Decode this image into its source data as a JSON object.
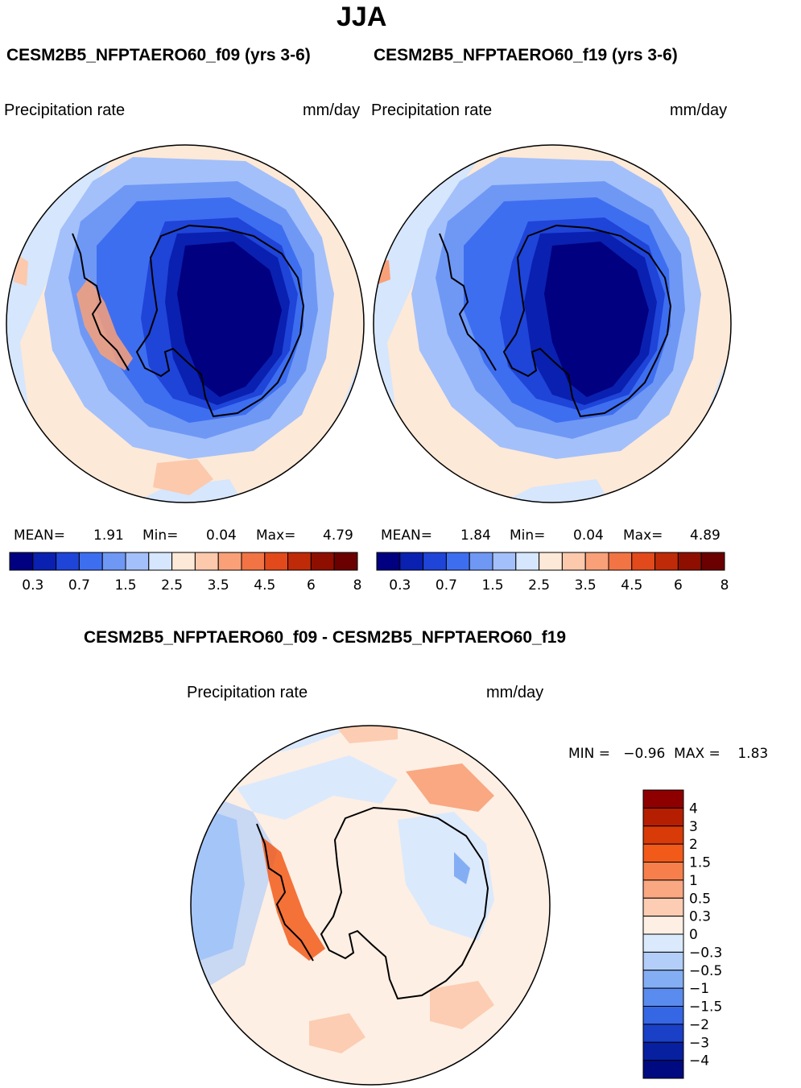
{
  "title": "JJA",
  "panels": [
    {
      "case": "CESM2B5_NFPTAERO60_f09 (yrs 3-6)",
      "variable": "Precipitation rate",
      "units": "mm/day",
      "mean_label": "MEAN=",
      "mean": "1.91",
      "min_label": "Min=",
      "min": "0.04",
      "max_label": "Max=",
      "max": "4.79"
    },
    {
      "case": "CESM2B5_NFPTAERO60_f19 (yrs 3-6)",
      "variable": "Precipitation rate",
      "units": "mm/day",
      "mean_label": "MEAN=",
      "mean": "1.84",
      "min_label": "Min=",
      "min": "0.04",
      "max_label": "Max=",
      "max": "4.89"
    }
  ],
  "diff": {
    "title": "CESM2B5_NFPTAERO60_f09 - CESM2B5_NFPTAERO60_f19",
    "variable": "Precipitation rate",
    "units": "mm/day",
    "minmax": "MIN =   −0.96  MAX =    1.83"
  },
  "chart_data": [
    {
      "type": "heatmap",
      "title": "CESM2B5_NFPTAERO60_f09 (yrs 3-6)",
      "projection": "south polar stereographic",
      "colorbar_levels": [
        "0.3",
        "0.7",
        "1.5",
        "2.5",
        "3.5",
        "4.5",
        "6",
        "8"
      ],
      "colorbar_colors": [
        "#000080",
        "#0a20b0",
        "#1f44d8",
        "#3e6ef0",
        "#6f98f5",
        "#a3c0fa",
        "#d6e6fc",
        "#fde9d8",
        "#fcc9ac",
        "#f9a078",
        "#f27444",
        "#e24a1c",
        "#bf2a08",
        "#8e0f00",
        "#6a0000"
      ],
      "stats": {
        "mean": 1.91,
        "min": 0.04,
        "max": 4.79
      }
    },
    {
      "type": "heatmap",
      "title": "CESM2B5_NFPTAERO60_f19 (yrs 3-6)",
      "projection": "south polar stereographic",
      "colorbar_levels": [
        "0.3",
        "0.7",
        "1.5",
        "2.5",
        "3.5",
        "4.5",
        "6",
        "8"
      ],
      "stats": {
        "mean": 1.84,
        "min": 0.04,
        "max": 4.89
      }
    },
    {
      "type": "heatmap",
      "title": "CESM2B5_NFPTAERO60_f09 - CESM2B5_NFPTAERO60_f19",
      "projection": "south polar stereographic",
      "colorbar_levels": [
        "4",
        "3",
        "2",
        "1.5",
        "1",
        "0.5",
        "0.3",
        "0",
        "−0.3",
        "−0.5",
        "−1",
        "−1.5",
        "−2",
        "−3",
        "−4"
      ],
      "colorbar_colors": [
        "#8e0000",
        "#b51e00",
        "#d83a08",
        "#f25a1a",
        "#f77f4c",
        "#f9a882",
        "#fccdb2",
        "#fdefe4",
        "#dbe9fc",
        "#b2cef9",
        "#84aef4",
        "#5a8cef",
        "#3566e4",
        "#1a40c8",
        "#0620a0",
        "#000a80"
      ],
      "stats": {
        "min": -0.96,
        "max": 1.83
      }
    }
  ]
}
